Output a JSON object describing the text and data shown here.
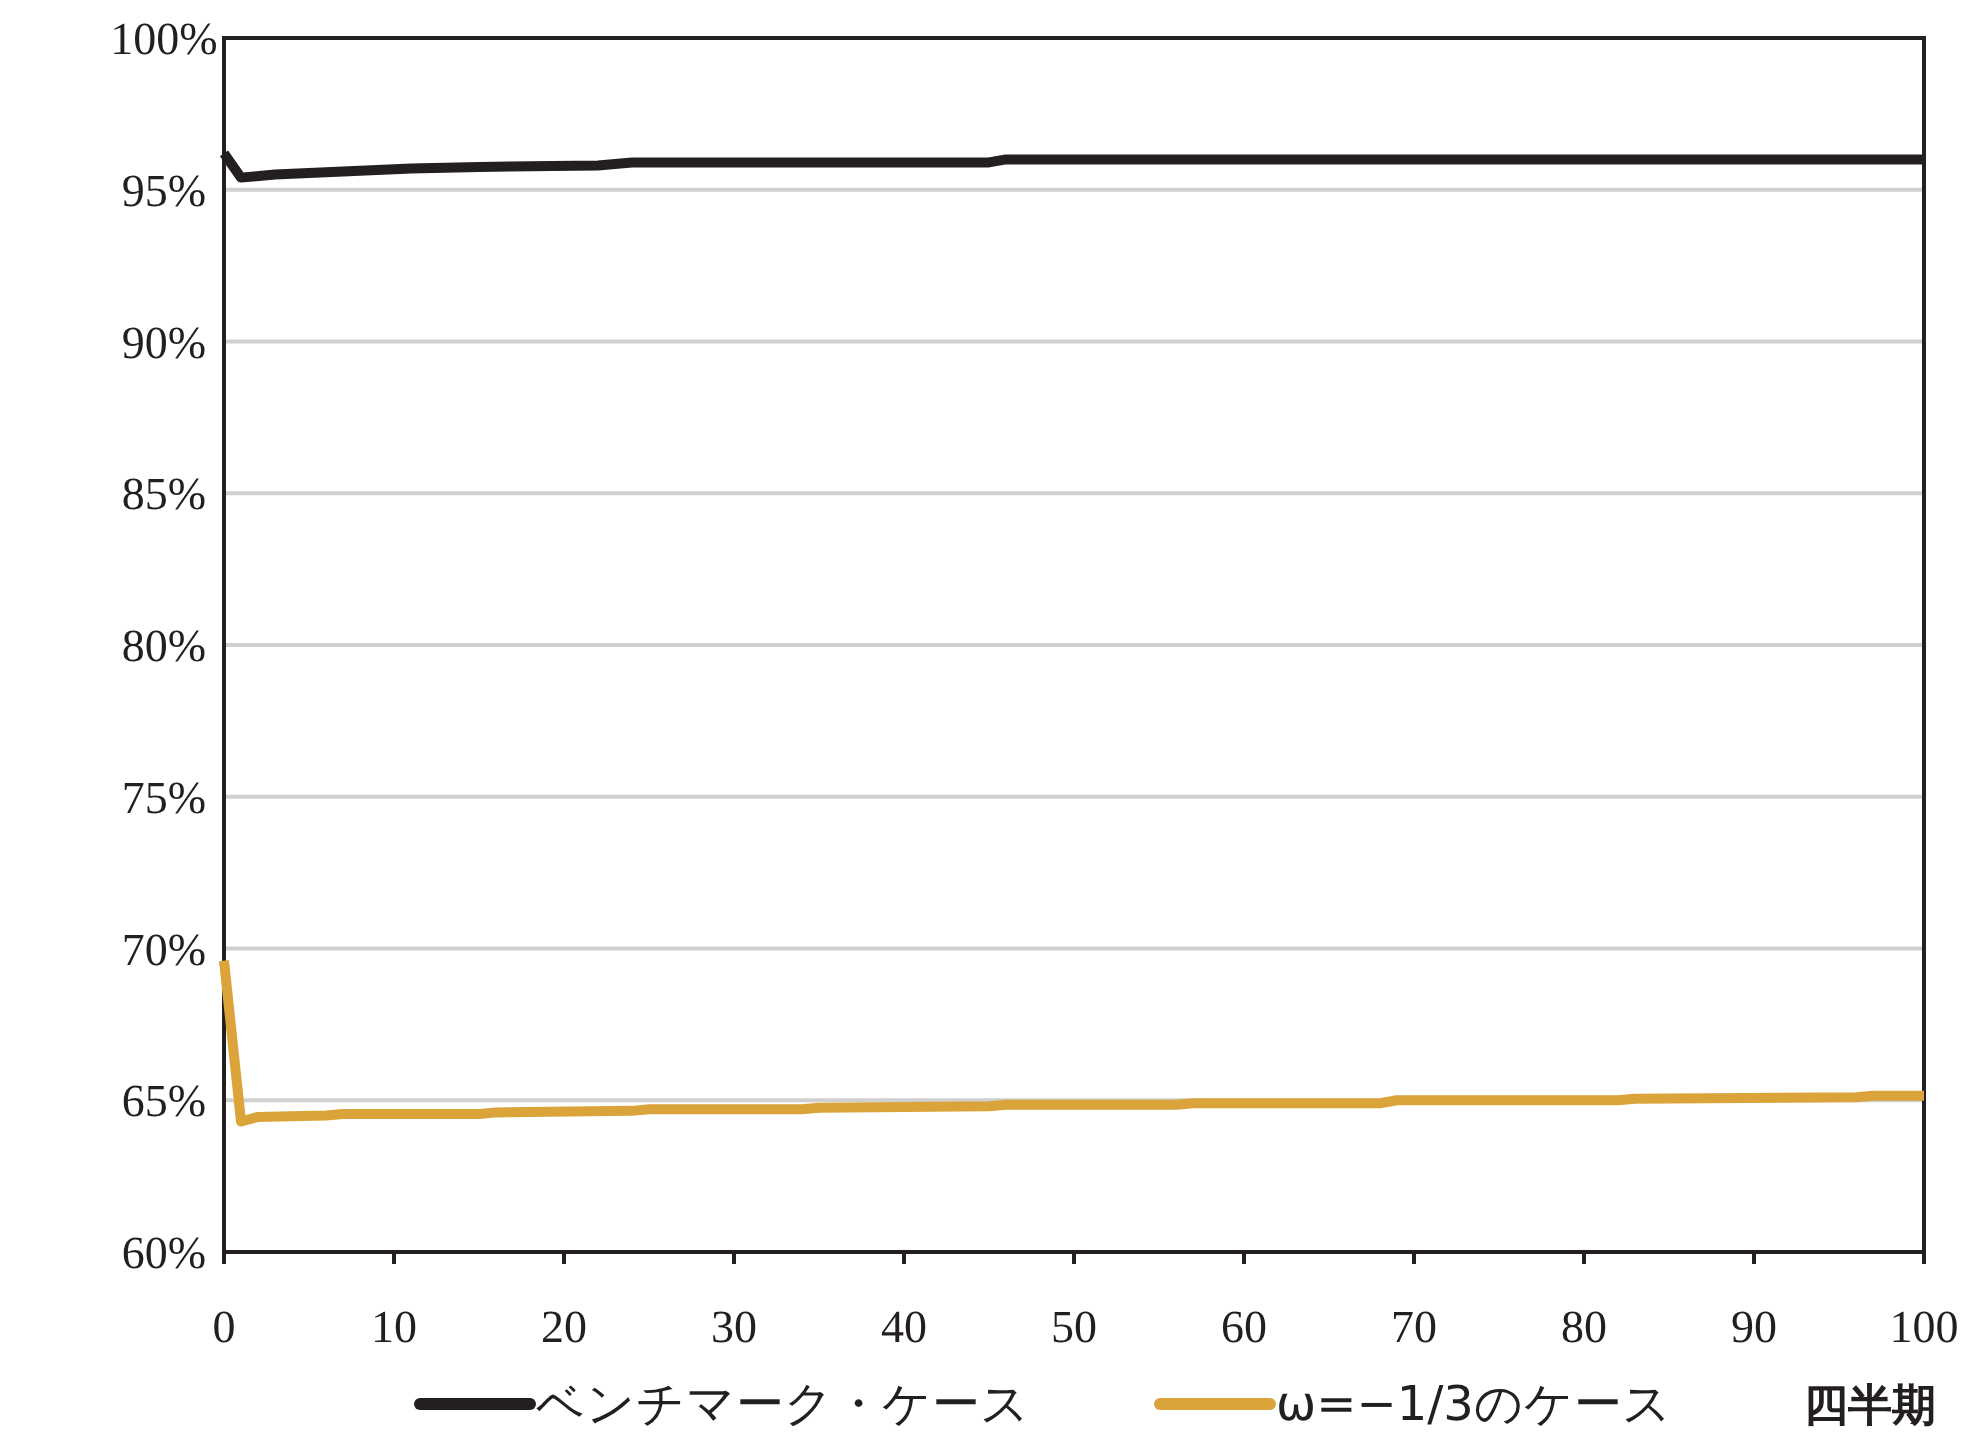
{
  "chart_data": {
    "type": "line",
    "xlabel": "四半期",
    "xlim": [
      0,
      100
    ],
    "xticks": [
      0,
      10,
      20,
      30,
      40,
      50,
      60,
      70,
      80,
      90,
      100
    ],
    "ylim": [
      60,
      100
    ],
    "yticks": [
      {
        "value": 60,
        "label": "60%"
      },
      {
        "value": 65,
        "label": "65%"
      },
      {
        "value": 70,
        "label": "70%"
      },
      {
        "value": 75,
        "label": "75%"
      },
      {
        "value": 80,
        "label": "80%"
      },
      {
        "value": 85,
        "label": "85%"
      },
      {
        "value": 90,
        "label": "90%"
      },
      {
        "value": 95,
        "label": "95%"
      },
      {
        "value": 100,
        "label": "100%"
      }
    ],
    "grid": "y",
    "legend": "bottom",
    "marker": "none",
    "line_style": "solid",
    "series": [
      {
        "name": "ベンチマーク・ケース",
        "color": "#231f20",
        "x": [
          0,
          1,
          3,
          7,
          11,
          15,
          22,
          24,
          45,
          46,
          100
        ],
        "values": [
          96.2,
          95.4,
          95.5,
          95.6,
          95.7,
          95.75,
          95.8,
          95.9,
          95.9,
          96.0,
          96.0
        ]
      },
      {
        "name": "ω=−1/3のケース",
        "color": "#dba43a",
        "x": [
          0,
          1,
          2,
          6,
          7,
          15,
          16,
          24,
          25,
          34,
          35,
          45,
          46,
          56,
          57,
          68,
          69,
          82,
          83,
          96,
          97,
          100
        ],
        "values": [
          69.6,
          64.3,
          64.45,
          64.5,
          64.55,
          64.55,
          64.6,
          64.65,
          64.7,
          64.7,
          64.75,
          64.8,
          64.85,
          64.85,
          64.9,
          64.9,
          65.0,
          65.0,
          65.05,
          65.1,
          65.15,
          65.15
        ]
      }
    ]
  }
}
